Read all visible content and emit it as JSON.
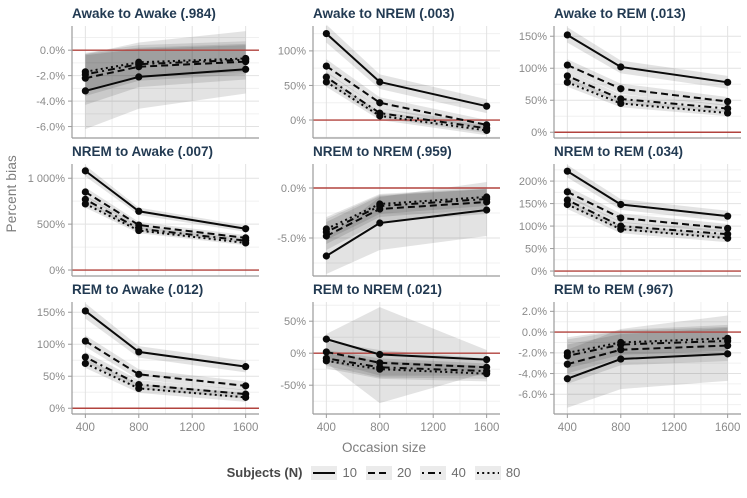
{
  "figure": {
    "ylabel": "Percent bias",
    "xlabel": "Occasion size",
    "legend": {
      "title": "Subjects (N)",
      "entries": [
        {
          "label": "10",
          "dash": "solid"
        },
        {
          "label": "20",
          "dash": "dashed"
        },
        {
          "label": "40",
          "dash": "dashdot"
        },
        {
          "label": "80",
          "dash": "dotted"
        }
      ]
    },
    "colors": {
      "title": "#223a52",
      "red_line": "#b2433e",
      "axis_text": "#8a8a8a",
      "grid_major": "#e2e2e2",
      "grid_minor": "#f0f0f0",
      "axis_line": "#9b9b9b",
      "line": "#0a0a0a",
      "ribbon": "rgba(0,0,0,0.11)"
    }
  },
  "chart_data": {
    "type": "line",
    "note": "3x3 faceted plot of percent bias in sleep-stage transition probability estimates vs occasion size; facet title shows true transition probability; lines = subject sample sizes 10/20/40/80; gray bands = uncertainty ribbons; red line = 0% bias",
    "x": [
      400,
      800,
      1600
    ],
    "x_ticks": [
      400,
      800,
      1200,
      1600
    ],
    "x_tick_labels": [
      "400",
      "800",
      "1200",
      "1600"
    ],
    "x_minor": [
      600,
      1000,
      1400
    ],
    "xlim": [
      300,
      1700
    ],
    "series_names": [
      "10",
      "20",
      "40",
      "80"
    ],
    "facets": [
      {
        "title": "Awake to Awake (.984)",
        "ylim": [
          -6.9,
          1.9
        ],
        "yticks": [
          {
            "v": 0,
            "l": "0.0%"
          },
          {
            "v": -2,
            "l": "-2.0%"
          },
          {
            "v": -4,
            "l": "-4.0%"
          },
          {
            "v": -6,
            "l": "-6.0%"
          }
        ],
        "series": [
          [
            -3.2,
            -2.1,
            -1.5
          ],
          [
            -2.2,
            -1.3,
            -0.9
          ],
          [
            -1.9,
            -1.1,
            -0.75
          ],
          [
            -1.7,
            -0.95,
            -0.65
          ]
        ],
        "ribbons": [
          {
            "lo": [
              -6.2,
              -4.6,
              -3.4
            ],
            "hi": [
              -0.3,
              0.6,
              1.5
            ]
          },
          {
            "lo": [
              -4.3,
              -2.9,
              -2.3
            ],
            "hi": [
              -0.2,
              0.4,
              0.7
            ]
          },
          {
            "lo": [
              -3.6,
              -2.4,
              -1.9
            ],
            "hi": [
              -0.3,
              0.2,
              0.5
            ]
          },
          {
            "lo": [
              -3.2,
              -2.1,
              -1.7
            ],
            "hi": [
              -0.4,
              0.1,
              0.4
            ]
          }
        ]
      },
      {
        "title": "Awake to NREM (.003)",
        "ylim": [
          -26,
          136
        ],
        "yticks": [
          {
            "v": 100,
            "l": "100%"
          },
          {
            "v": 50,
            "l": "50%"
          },
          {
            "v": 0,
            "l": "0%"
          }
        ],
        "series": [
          [
            125,
            55,
            20
          ],
          [
            78,
            25,
            -7
          ],
          [
            62,
            10,
            -12
          ],
          [
            55,
            6,
            -15
          ]
        ],
        "ribbons": [
          {
            "lo": [
              112,
              45,
              10
            ],
            "hi": [
              138,
              66,
              30
            ]
          },
          {
            "lo": [
              68,
              17,
              -14
            ],
            "hi": [
              88,
              33,
              0
            ]
          },
          {
            "lo": [
              54,
              3,
              -19
            ],
            "hi": [
              70,
              17,
              -5
            ]
          },
          {
            "lo": [
              48,
              0,
              -22
            ],
            "hi": [
              62,
              12,
              -8
            ]
          }
        ]
      },
      {
        "title": "Awake to REM (.013)",
        "ylim": [
          -9,
          166
        ],
        "yticks": [
          {
            "v": 150,
            "l": "150%"
          },
          {
            "v": 100,
            "l": "100%"
          },
          {
            "v": 50,
            "l": "50%"
          },
          {
            "v": 0,
            "l": "0%"
          }
        ],
        "series": [
          [
            152,
            102,
            78
          ],
          [
            105,
            68,
            48
          ],
          [
            88,
            52,
            37
          ],
          [
            78,
            45,
            30
          ]
        ],
        "ribbons": [
          {
            "lo": [
              140,
              92,
              68
            ],
            "hi": [
              164,
              112,
              88
            ]
          },
          {
            "lo": [
              96,
              60,
              41
            ],
            "hi": [
              114,
              76,
              55
            ]
          },
          {
            "lo": [
              80,
              45,
              31
            ],
            "hi": [
              96,
              59,
              43
            ]
          },
          {
            "lo": [
              71,
              39,
              25
            ],
            "hi": [
              85,
              51,
              35
            ]
          }
        ]
      },
      {
        "title": "NREM to Awake (.007)",
        "ylim": [
          -65,
          1155
        ],
        "yticks": [
          {
            "v": 1000,
            "l": "1 000%"
          },
          {
            "v": 500,
            "l": "500%"
          },
          {
            "v": 0,
            "l": "0%"
          }
        ],
        "series": [
          [
            1080,
            640,
            450
          ],
          [
            850,
            490,
            350
          ],
          [
            770,
            450,
            320
          ],
          [
            720,
            430,
            295
          ]
        ],
        "ribbons": [
          {
            "lo": [
              1020,
              600,
              415
            ],
            "hi": [
              1140,
              680,
              485
            ]
          },
          {
            "lo": [
              800,
              455,
              320
            ],
            "hi": [
              900,
              525,
              380
            ]
          },
          {
            "lo": [
              725,
              420,
              293
            ],
            "hi": [
              815,
              480,
              347
            ]
          },
          {
            "lo": [
              680,
              400,
              270
            ],
            "hi": [
              760,
              460,
              320
            ]
          }
        ]
      },
      {
        "title": "NREM to NREM (.959)",
        "ylim": [
          -8.8,
          2.4
        ],
        "yticks": [
          {
            "v": 0,
            "l": "0.0%"
          },
          {
            "v": -5,
            "l": "-5.0%"
          }
        ],
        "series": [
          [
            -6.8,
            -3.5,
            -2.2
          ],
          [
            -4.8,
            -2.1,
            -1.4
          ],
          [
            -4.4,
            -1.8,
            -1.1
          ],
          [
            -4.1,
            -1.6,
            -0.9
          ]
        ],
        "ribbons": [
          {
            "lo": [
              -8.6,
              -6.2,
              -4.8
            ],
            "hi": [
              -5.0,
              -0.9,
              0.6
            ]
          },
          {
            "lo": [
              -6.2,
              -3.4,
              -2.6
            ],
            "hi": [
              -3.4,
              -0.8,
              -0.1
            ]
          },
          {
            "lo": [
              -5.6,
              -2.9,
              -2.1
            ],
            "hi": [
              -3.1,
              -0.7,
              -0.1
            ]
          },
          {
            "lo": [
              -5.2,
              -2.6,
              -1.8
            ],
            "hi": [
              -2.9,
              -0.6,
              0.0
            ]
          }
        ]
      },
      {
        "title": "NREM to REM (.034)",
        "ylim": [
          -11,
          238
        ],
        "yticks": [
          {
            "v": 200,
            "l": "200%"
          },
          {
            "v": 150,
            "l": "150%"
          },
          {
            "v": 100,
            "l": "100%"
          },
          {
            "v": 50,
            "l": "50%"
          },
          {
            "v": 0,
            "l": "0%"
          }
        ],
        "series": [
          [
            222,
            148,
            122
          ],
          [
            176,
            118,
            95
          ],
          [
            158,
            100,
            82
          ],
          [
            148,
            93,
            73
          ]
        ],
        "ribbons": [
          {
            "lo": [
              208,
              136,
              110
            ],
            "hi": [
              236,
              160,
              134
            ]
          },
          {
            "lo": [
              164,
              108,
              85
            ],
            "hi": [
              188,
              128,
              105
            ]
          },
          {
            "lo": [
              147,
              91,
              73
            ],
            "hi": [
              169,
              109,
              91
            ]
          },
          {
            "lo": [
              138,
              84,
              64
            ],
            "hi": [
              158,
              102,
              82
            ]
          }
        ]
      },
      {
        "title": "REM to Awake (.012)",
        "ylim": [
          -9,
          166
        ],
        "yticks": [
          {
            "v": 150,
            "l": "150%"
          },
          {
            "v": 100,
            "l": "100%"
          },
          {
            "v": 50,
            "l": "50%"
          },
          {
            "v": 0,
            "l": "0%"
          }
        ],
        "series": [
          [
            152,
            88,
            65
          ],
          [
            105,
            53,
            35
          ],
          [
            80,
            37,
            22
          ],
          [
            70,
            31,
            17
          ]
        ],
        "ribbons": [
          {
            "lo": [
              140,
              79,
              56
            ],
            "hi": [
              164,
              97,
              74
            ]
          },
          {
            "lo": [
              96,
              45,
              28
            ],
            "hi": [
              114,
              61,
              42
            ]
          },
          {
            "lo": [
              72,
              30,
              15
            ],
            "hi": [
              88,
              44,
              29
            ]
          },
          {
            "lo": [
              63,
              24,
              10
            ],
            "hi": [
              77,
              38,
              24
            ]
          }
        ]
      },
      {
        "title": "REM to NREM (.021)",
        "ylim": [
          -95,
          80
        ],
        "yticks": [
          {
            "v": 50,
            "l": "50%"
          },
          {
            "v": 0,
            "l": "0%"
          },
          {
            "v": -50,
            "l": "-50%"
          }
        ],
        "series": [
          [
            22,
            -2,
            -10
          ],
          [
            2,
            -15,
            -22
          ],
          [
            -8,
            -22,
            -28
          ],
          [
            -12,
            -25,
            -32
          ]
        ],
        "ribbons": [
          {
            "lo": [
              -15,
              -78,
              -30
            ],
            "hi": [
              30,
              72,
              5
            ]
          },
          {
            "lo": [
              -12,
              -35,
              -35
            ],
            "hi": [
              18,
              5,
              -8
            ]
          },
          {
            "lo": [
              -20,
              -38,
              -40
            ],
            "hi": [
              5,
              -8,
              -16
            ]
          },
          {
            "lo": [
              -24,
              -40,
              -44
            ],
            "hi": [
              0,
              -12,
              -20
            ]
          }
        ]
      },
      {
        "title": "REM to REM (.967)",
        "ylim": [
          -7.9,
          2.9
        ],
        "yticks": [
          {
            "v": 2,
            "l": "2.0%"
          },
          {
            "v": 0,
            "l": "0.0%"
          },
          {
            "v": -2,
            "l": "-2.0%"
          },
          {
            "v": -4,
            "l": "-4.0%"
          },
          {
            "v": -6,
            "l": "-6.0%"
          }
        ],
        "series": [
          [
            -4.5,
            -2.6,
            -2.1
          ],
          [
            -3.1,
            -1.7,
            -1.3
          ],
          [
            -2.3,
            -1.2,
            -0.85
          ],
          [
            -2.0,
            -1.0,
            -0.6
          ]
        ],
        "ribbons": [
          {
            "lo": [
              -7.3,
              -5.5,
              -4.7
            ],
            "hi": [
              -1.7,
              0.3,
              1.6
            ]
          },
          {
            "lo": [
              -5.0,
              -3.2,
              -2.8
            ],
            "hi": [
              -1.2,
              -0.2,
              0.4
            ]
          },
          {
            "lo": [
              -4.0,
              -2.5,
              -2.1
            ],
            "hi": [
              -0.7,
              0.1,
              0.5
            ]
          },
          {
            "lo": [
              -3.5,
              -2.2,
              -1.8
            ],
            "hi": [
              -0.5,
              0.2,
              0.7
            ]
          }
        ]
      }
    ]
  }
}
